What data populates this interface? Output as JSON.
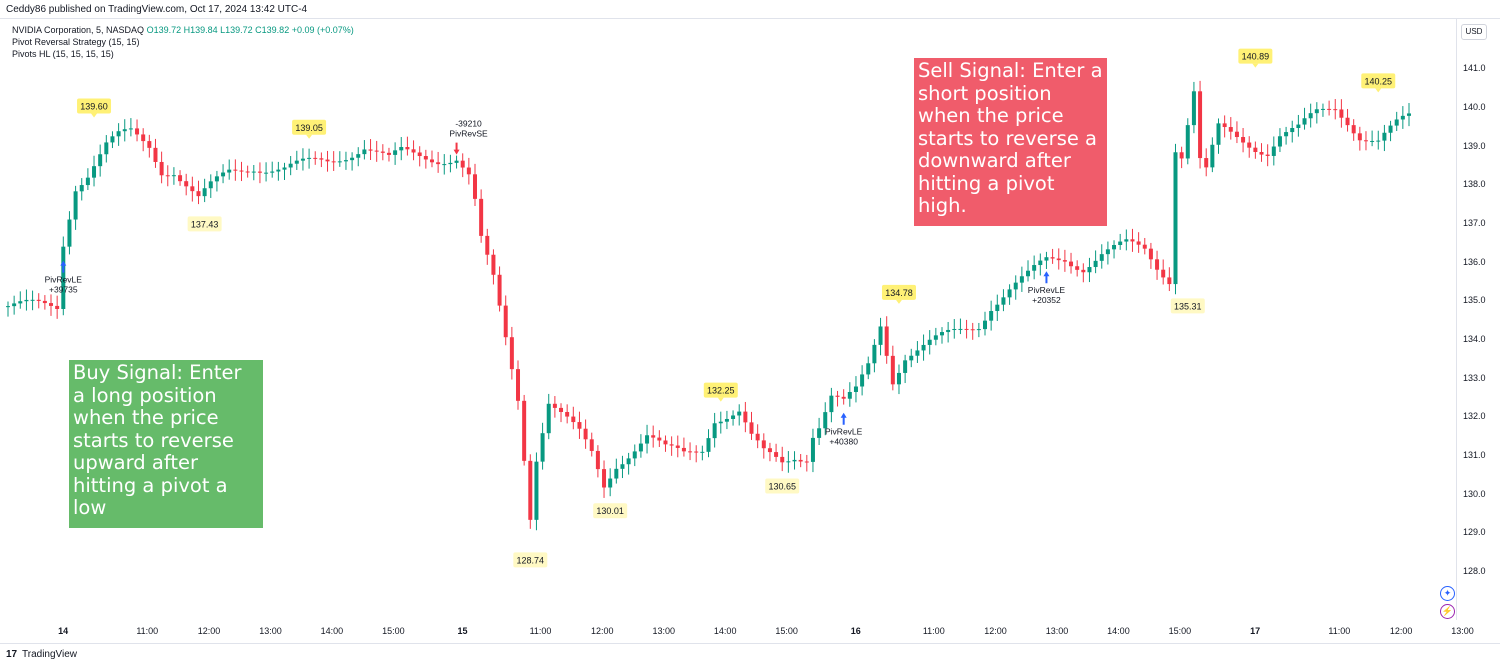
{
  "header": {
    "publisher_text": "Ceddy86 published on TradingView.com, Oct 17, 2024 13:42 UTC-4"
  },
  "legend": {
    "symbol": "NVIDIA Corporation, 5, NASDAQ",
    "ohlc": "O139.72  H139.84  L139.72  C139.82  +0.09 (+0.07%)",
    "line2": "Pivot Reversal Strategy (15, 15)",
    "line3": "Pivots HL (15, 15, 15, 15)"
  },
  "currency_button": "USD",
  "footer": {
    "logo_glyph": "17",
    "brand": "TradingView"
  },
  "callouts": {
    "buy": "Buy Signal: Enter a long position when the price starts to reverse upward after hitting a pivot a low",
    "sell": "Sell Signal: Enter a short position when the price starts to reverse a downward after hitting a pivot high."
  },
  "icons": {
    "crosshair": "crosshair-icon",
    "lightning": "lightning-icon"
  },
  "colors": {
    "up": "#089981",
    "down": "#f23645",
    "pivot_label": "#fff176",
    "signal_arrow": "#2962ff",
    "sell_arrow": "#f23645"
  },
  "chart_data": {
    "type": "candlestick",
    "symbol": "NVIDIA Corporation, 5, NASDAQ",
    "ylim": [
      127.3,
      142.2
    ],
    "y_ticks": [
      128,
      129,
      130,
      131,
      132,
      133,
      134,
      135,
      136,
      137,
      138,
      139,
      140,
      141,
      142
    ],
    "x_ticks": [
      "14",
      "11:00",
      "12:00",
      "13:00",
      "14:00",
      "15:00",
      "15",
      "11:00",
      "12:00",
      "13:00",
      "14:00",
      "15:00",
      "16",
      "11:00",
      "12:00",
      "13:00",
      "14:00",
      "15:00",
      "17",
      "11:00",
      "12:00",
      "13:00"
    ],
    "close_path": [
      [
        0,
        134.85
      ],
      [
        8,
        134.82
      ],
      [
        9,
        136.5
      ],
      [
        11,
        138.0
      ],
      [
        13,
        138.3
      ],
      [
        16,
        139.0
      ],
      [
        18,
        139.2
      ],
      [
        20,
        139.3
      ],
      [
        23,
        139.0
      ],
      [
        25,
        138.4
      ],
      [
        27,
        138.4
      ],
      [
        29,
        138.0
      ],
      [
        31,
        137.6
      ],
      [
        33,
        137.9
      ],
      [
        36,
        138.3
      ],
      [
        40,
        138.5
      ],
      [
        45,
        138.4
      ],
      [
        52,
        138.6
      ],
      [
        58,
        139.0
      ],
      [
        62,
        138.6
      ],
      [
        64,
        138.8
      ],
      [
        70,
        138.7
      ],
      [
        73,
        138.7
      ],
      [
        75,
        138.2
      ],
      [
        76,
        137.5
      ],
      [
        77,
        136.5
      ],
      [
        79,
        135.5
      ],
      [
        81,
        134.0
      ],
      [
        83,
        132.5
      ],
      [
        85,
        129.5
      ],
      [
        86,
        131.0
      ],
      [
        88,
        132.4
      ],
      [
        93,
        131.5
      ],
      [
        95,
        131.0
      ],
      [
        97,
        130.2
      ],
      [
        99,
        130.8
      ],
      [
        104,
        131.5
      ],
      [
        107,
        131.1
      ],
      [
        110,
        131.0
      ],
      [
        113,
        131.2
      ],
      [
        115,
        132.0
      ],
      [
        119,
        132.1
      ],
      [
        121,
        131.4
      ],
      [
        123,
        131.0
      ],
      [
        126,
        130.8
      ],
      [
        128,
        131.0
      ],
      [
        130,
        131.0
      ],
      [
        131,
        131.6
      ],
      [
        132,
        131.8
      ],
      [
        134,
        132.5
      ],
      [
        136,
        132.3
      ],
      [
        138,
        132.6
      ],
      [
        140,
        133.3
      ],
      [
        142,
        134.4
      ],
      [
        144,
        133.0
      ],
      [
        146,
        133.6
      ],
      [
        149,
        133.8
      ],
      [
        152,
        134.0
      ],
      [
        155,
        134.2
      ],
      [
        158,
        134.4
      ],
      [
        160,
        134.9
      ],
      [
        163,
        135.3
      ],
      [
        166,
        135.6
      ],
      [
        169,
        136.0
      ],
      [
        172,
        136.1
      ],
      [
        175,
        135.9
      ],
      [
        178,
        136.2
      ],
      [
        182,
        136.4
      ],
      [
        185,
        136.3
      ],
      [
        187,
        135.9
      ],
      [
        189,
        135.6
      ],
      [
        190,
        139.0
      ],
      [
        191,
        138.8
      ],
      [
        192,
        139.6
      ],
      [
        193,
        140.4
      ],
      [
        194,
        138.6
      ],
      [
        195,
        138.3
      ],
      [
        197,
        139.4
      ],
      [
        200,
        139.2
      ],
      [
        203,
        139.0
      ],
      [
        205,
        138.9
      ],
      [
        207,
        139.3
      ],
      [
        210,
        139.4
      ],
      [
        213,
        139.8
      ],
      [
        216,
        140.0
      ],
      [
        218,
        139.7
      ],
      [
        220,
        139.3
      ],
      [
        223,
        139.1
      ],
      [
        226,
        139.5
      ],
      [
        229,
        139.8
      ]
    ],
    "pivot_labels": [
      {
        "x": 14,
        "value": "139.60",
        "type": "high"
      },
      {
        "x": 32,
        "value": "137.43",
        "type": "low"
      },
      {
        "x": 49,
        "value": "139.05",
        "type": "high"
      },
      {
        "x": 85,
        "value": "128.74",
        "type": "low"
      },
      {
        "x": 98,
        "value": "130.01",
        "type": "low"
      },
      {
        "x": 116,
        "value": "132.25",
        "type": "high"
      },
      {
        "x": 126,
        "value": "130.65",
        "type": "low"
      },
      {
        "x": 145,
        "value": "134.78",
        "type": "high"
      },
      {
        "x": 192,
        "value": "135.31",
        "type": "low"
      },
      {
        "x": 203,
        "value": "140.89",
        "type": "high"
      },
      {
        "x": 223,
        "value": "140.25",
        "type": "high"
      }
    ],
    "signals": [
      {
        "x": 9,
        "side": "long",
        "name": "PivRevLE",
        "amount": "+39735"
      },
      {
        "x": 73,
        "side": "short",
        "name": "PivRevSE",
        "amount": "-39210"
      },
      {
        "x": 136,
        "side": "long",
        "name": "PivRevLE",
        "amount": "+40380"
      },
      {
        "x": 169,
        "side": "long",
        "name": "PivRevLE",
        "amount": "+20352"
      }
    ]
  }
}
